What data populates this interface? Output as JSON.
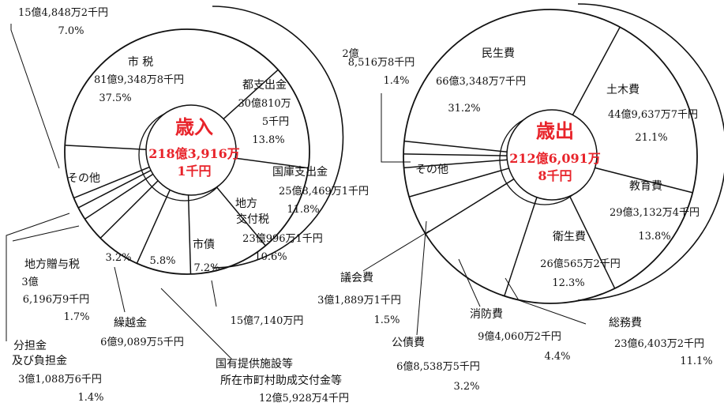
{
  "colors": {
    "ink": "#111111",
    "accent": "#e8232a",
    "background": "#ffffff"
  },
  "chart_data": [
    {
      "type": "pie",
      "title": "歳入",
      "total_lines": [
        "218億3,916万",
        "1千円"
      ],
      "slices": [
        {
          "name": "市 税",
          "amount": "81億9,348万8千円",
          "percent": 37.5
        },
        {
          "name": "都支出金",
          "amount_lines": [
            "30億810万",
            "5千円"
          ],
          "percent": 13.8
        },
        {
          "name": "国庫支出金",
          "amount": "25億8,469万1千円",
          "percent": 11.8
        },
        {
          "name_lines": [
            "地方",
            "交付税"
          ],
          "amount": "23億996万1千円",
          "percent": 10.6
        },
        {
          "name": "市債",
          "amount": "15億7,140万円",
          "percent": 7.2
        },
        {
          "name_lines": [
            "国有提供施設等",
            "所在市町村助成交付金等"
          ],
          "amount": "12億5,928万4千円",
          "percent": 5.8
        },
        {
          "name": "繰越金",
          "amount": "6億9,089万5千円",
          "percent": 3.2
        },
        {
          "name": "地方贈与税",
          "amount_lines": [
            "3億",
            "6,196万9千円"
          ],
          "percent": 1.7
        },
        {
          "name_lines": [
            "分担金",
            "及び負担金"
          ],
          "amount": "3億1,088万6千円",
          "percent": 1.4
        },
        {
          "name": "その他",
          "amount": "15億4,848万2千円",
          "percent": 7.0
        }
      ]
    },
    {
      "type": "pie",
      "title": "歳出",
      "total_lines": [
        "212億6,091万",
        "8千円"
      ],
      "slices": [
        {
          "name": "民生費",
          "amount": "66億3,348万7千円",
          "percent": 31.2
        },
        {
          "name": "土木費",
          "amount": "44億9,637万7千円",
          "percent": 21.1
        },
        {
          "name": "教育費",
          "amount": "29億3,132万4千円",
          "percent": 13.8
        },
        {
          "name": "衛生費",
          "amount": "26億565万2千円",
          "percent": 12.3
        },
        {
          "name": "総務費",
          "amount": "23億6,403万2千円",
          "percent": 11.1
        },
        {
          "name": "消防費",
          "amount": "9億4,060万2千円",
          "percent": 4.4
        },
        {
          "name": "公債費",
          "amount": "6億8,538万5千円",
          "percent": 3.2
        },
        {
          "name": "議会費",
          "amount": "3億1,889万1千円",
          "percent": 1.5
        },
        {
          "name": "その他",
          "amount_lines": [
            "2億",
            "8,516万8千円"
          ],
          "percent": 1.4
        }
      ]
    }
  ]
}
